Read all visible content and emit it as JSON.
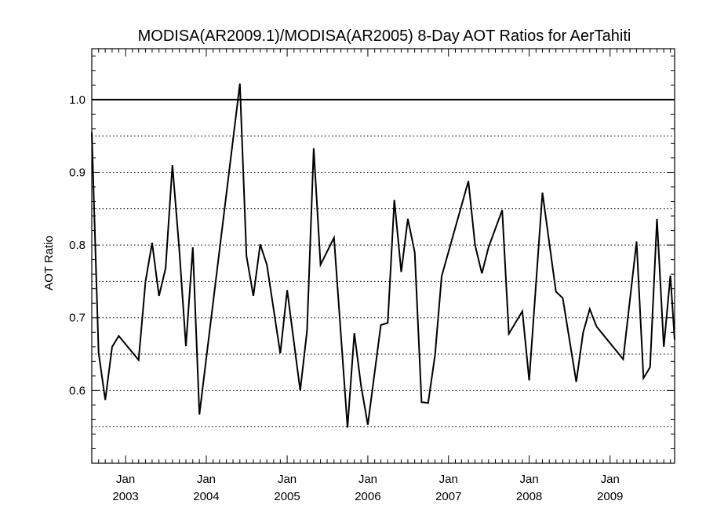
{
  "chart_data": {
    "type": "line",
    "title": "MODISA(AR2009.1)/MODISA(AR2005) 8-Day AOT Ratios for AerTahiti",
    "xlabel": "",
    "ylabel": "AOT Ratio",
    "xlim": [
      "2002-08-01",
      "2009-10-20"
    ],
    "ylim": [
      0.5,
      1.07
    ],
    "y_ticks": [
      0.6,
      0.7,
      0.8,
      0.9,
      1.0
    ],
    "y_tick_labels": [
      "0.6",
      "0.7",
      "0.8",
      "0.9",
      "1.0"
    ],
    "y_dotted_gridlines": [
      0.55,
      0.6,
      0.65,
      0.7,
      0.75,
      0.8,
      0.85,
      0.9,
      0.95
    ],
    "reference_line": 1.0,
    "x_ticks": [
      {
        "date": "2003-01-01",
        "month": "Jan",
        "year": "2003"
      },
      {
        "date": "2004-01-01",
        "month": "Jan",
        "year": "2004"
      },
      {
        "date": "2005-01-01",
        "month": "Jan",
        "year": "2005"
      },
      {
        "date": "2006-01-01",
        "month": "Jan",
        "year": "2006"
      },
      {
        "date": "2007-01-01",
        "month": "Jan",
        "year": "2007"
      },
      {
        "date": "2008-01-01",
        "month": "Jan",
        "year": "2008"
      },
      {
        "date": "2009-01-01",
        "month": "Jan",
        "year": "2009"
      }
    ],
    "grid": "horizontal dotted",
    "series": [
      {
        "x": [
          "2002-08-01",
          "2002-09-01",
          "2002-10-01",
          "2002-11-01",
          "2002-12-01",
          "2003-03-01",
          "2003-04-01",
          "2003-05-01",
          "2003-06-01",
          "2003-07-01",
          "2003-08-01",
          "2003-09-01",
          "2003-10-01",
          "2003-11-01",
          "2003-12-01",
          "2004-06-01",
          "2004-07-01",
          "2004-08-01",
          "2004-09-01",
          "2004-10-01",
          "2004-12-01",
          "2005-01-01",
          "2005-03-01",
          "2005-04-01",
          "2005-05-01",
          "2005-06-01",
          "2005-08-01",
          "2005-10-01",
          "2005-11-01",
          "2005-12-01",
          "2006-01-01",
          "2006-03-01",
          "2006-04-01",
          "2006-05-01",
          "2006-06-01",
          "2006-07-01",
          "2006-08-01",
          "2006-09-01",
          "2006-10-01",
          "2006-11-01",
          "2006-12-01",
          "2007-04-01",
          "2007-05-01",
          "2007-06-01",
          "2007-07-01",
          "2007-09-01",
          "2007-10-01",
          "2007-12-01",
          "2008-01-01",
          "2008-03-01",
          "2008-05-01",
          "2008-06-01",
          "2008-08-01",
          "2008-09-01",
          "2008-10-01",
          "2008-11-01",
          "2009-03-01",
          "2009-05-01",
          "2009-06-01",
          "2009-07-01",
          "2009-08-01",
          "2009-09-01",
          "2009-10-01",
          "2009-10-20"
        ],
        "y": [
          0.955,
          0.652,
          0.587,
          0.66,
          0.675,
          0.642,
          0.75,
          0.803,
          0.73,
          0.768,
          0.91,
          0.793,
          0.661,
          0.797,
          0.567,
          1.022,
          0.785,
          0.73,
          0.801,
          0.773,
          0.651,
          0.738,
          0.6,
          0.682,
          0.933,
          0.773,
          0.81,
          0.549,
          0.679,
          0.607,
          0.553,
          0.69,
          0.693,
          0.862,
          0.763,
          0.836,
          0.79,
          0.584,
          0.583,
          0.649,
          0.757,
          0.888,
          0.8,
          0.761,
          0.797,
          0.848,
          0.678,
          0.709,
          0.614,
          0.872,
          0.736,
          0.727,
          0.612,
          0.68,
          0.712,
          0.688,
          0.643,
          0.805,
          0.617,
          0.632,
          0.836,
          0.66,
          0.758,
          0.67
        ]
      }
    ]
  }
}
